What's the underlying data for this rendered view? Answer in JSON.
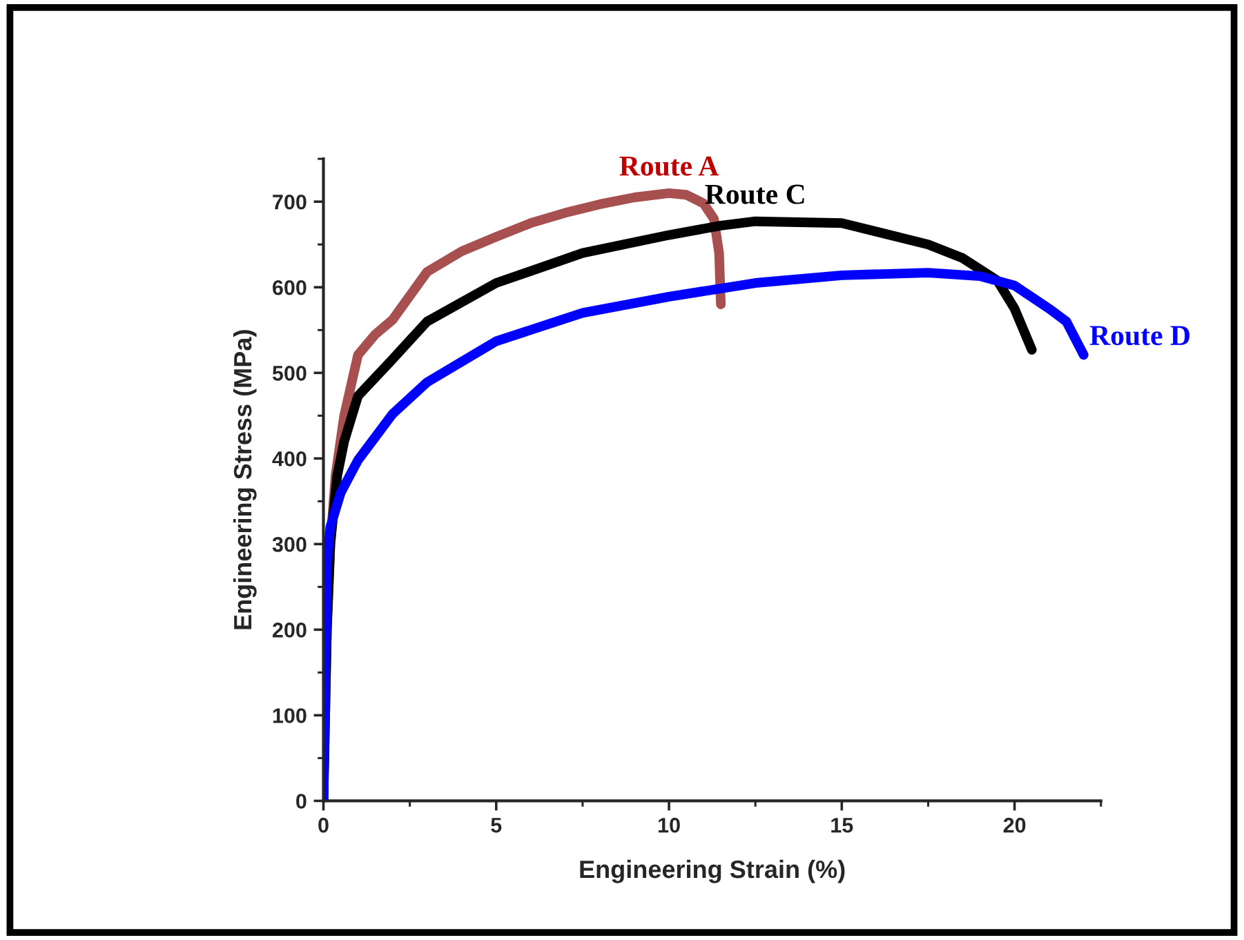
{
  "chart_data": {
    "type": "line",
    "xlabel": "Engineering Strain (%)",
    "ylabel": "Engineering Stress (MPa)",
    "xlim": [
      0,
      22.5
    ],
    "xticks": [
      0,
      5,
      10,
      15,
      20
    ],
    "ylim": [
      0,
      750
    ],
    "yticks": [
      0,
      100,
      200,
      300,
      400,
      500,
      600,
      700
    ],
    "grid": false,
    "legend": false,
    "line_style": "solid",
    "series": [
      {
        "name": "Route A",
        "color": "#a85050",
        "x": [
          0,
          0.1,
          0.2,
          0.35,
          0.6,
          1,
          1.5,
          2,
          3,
          4,
          5,
          6,
          7,
          8,
          9,
          10,
          10.5,
          11,
          11.3,
          11.45,
          11.5
        ],
        "values": [
          0,
          200,
          300,
          380,
          450,
          521,
          545,
          562,
          618,
          642,
          659,
          675,
          687,
          697,
          705,
          710,
          708,
          698,
          680,
          640,
          580
        ]
      },
      {
        "name": "Route C",
        "color": "#000000",
        "x": [
          0,
          0.1,
          0.2,
          0.4,
          0.6,
          1,
          2,
          3,
          5,
          7.5,
          10,
          11.5,
          12.5,
          15,
          17.5,
          18.5,
          19.5,
          20,
          20.5
        ],
        "values": [
          0,
          200,
          300,
          380,
          420,
          473,
          516,
          560,
          605,
          640,
          661,
          672,
          677,
          675,
          650,
          634,
          608,
          575,
          527
        ]
      },
      {
        "name": "Route D",
        "color": "#0000ff",
        "x": [
          0,
          0.05,
          0.1,
          0.2,
          0.5,
          1,
          2,
          3,
          5,
          7.5,
          10,
          12.5,
          15,
          17.5,
          19,
          20,
          21,
          21.5,
          22
        ],
        "values": [
          0,
          150,
          280,
          320,
          360,
          398,
          452,
          489,
          537,
          570,
          589,
          605,
          614,
          617,
          613,
          602,
          575,
          560,
          521
        ]
      }
    ]
  }
}
